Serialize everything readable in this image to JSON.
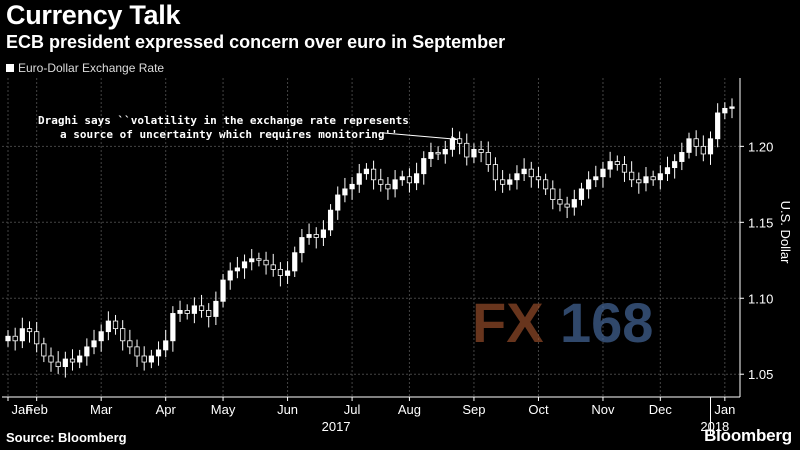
{
  "title": "Currency Talk",
  "subtitle": "ECB president expressed concern over euro in September",
  "source": "Source: Bloomberg",
  "brand": "Bloomberg",
  "watermark": {
    "part1": "FX",
    "part2": "168"
  },
  "colors": {
    "background": "#000000",
    "candle": "#ffffff",
    "grid": "#444444"
  },
  "chart_data": {
    "type": "candlestick",
    "series": [
      {
        "name": "Euro-Dollar Exchange Rate"
      }
    ],
    "ylabel": "U.S. Dollar",
    "ylim": [
      1.035,
      1.245
    ],
    "y_ticks": [
      "1.05",
      "1.10",
      "1.15",
      "1.20"
    ],
    "y_tick_values": [
      1.05,
      1.1,
      1.15,
      1.2
    ],
    "x_ticks": [
      "Jan",
      "Feb",
      "Mar",
      "Apr",
      "May",
      "Jun",
      "Jul",
      "Aug",
      "Sep",
      "Oct",
      "Nov",
      "Dec",
      "Jan"
    ],
    "x_tick_weeks": [
      0,
      4,
      13,
      22,
      30,
      39,
      48,
      56,
      65,
      74,
      83,
      91,
      100
    ],
    "year_labels": [
      {
        "label": "2017",
        "week": 48
      },
      {
        "label": "2018",
        "week": 100
      }
    ],
    "grid": true,
    "legend": "top-left",
    "annotation": {
      "lines": [
        "Draghi says ``volatility in the exchange rate represents",
        "a source of uncertainty which requires monitoring''"
      ],
      "target_week": 63
    },
    "weekly_close": [
      1.075,
      1.072,
      1.08,
      1.078,
      1.07,
      1.062,
      1.058,
      1.055,
      1.06,
      1.058,
      1.062,
      1.068,
      1.072,
      1.078,
      1.085,
      1.08,
      1.072,
      1.068,
      1.062,
      1.058,
      1.062,
      1.066,
      1.072,
      1.09,
      1.092,
      1.09,
      1.095,
      1.092,
      1.088,
      1.098,
      1.112,
      1.118,
      1.12,
      1.124,
      1.126,
      1.125,
      1.122,
      1.119,
      1.115,
      1.118,
      1.13,
      1.14,
      1.142,
      1.14,
      1.145,
      1.158,
      1.168,
      1.172,
      1.175,
      1.182,
      1.185,
      1.178,
      1.175,
      1.172,
      1.178,
      1.18,
      1.176,
      1.182,
      1.192,
      1.196,
      1.195,
      1.198,
      1.205,
      1.202,
      1.193,
      1.198,
      1.196,
      1.188,
      1.178,
      1.175,
      1.178,
      1.182,
      1.185,
      1.18,
      1.178,
      1.172,
      1.165,
      1.162,
      1.16,
      1.165,
      1.172,
      1.178,
      1.18,
      1.185,
      1.19,
      1.188,
      1.183,
      1.178,
      1.176,
      1.18,
      1.178,
      1.182,
      1.186,
      1.19,
      1.196,
      1.205,
      1.2,
      1.195,
      1.205,
      1.222,
      1.225,
      1.226
    ]
  }
}
